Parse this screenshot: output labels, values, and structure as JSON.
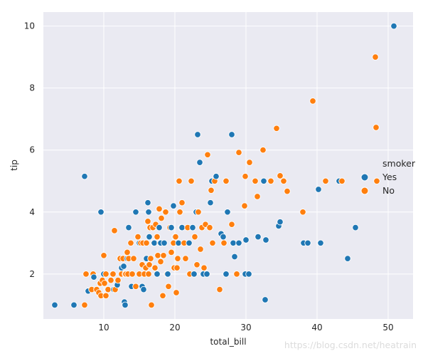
{
  "chart_data": {
    "type": "scatter",
    "title": "",
    "xlabel": "total_bill",
    "ylabel": "tip",
    "xlim": [
      1.5,
      53.5
    ],
    "ylim": [
      0.55,
      10.45
    ],
    "xticks": [
      10,
      20,
      30,
      40,
      50
    ],
    "yticks": [
      2,
      4,
      6,
      8,
      10
    ],
    "grid": true,
    "background": "#eaeaf2",
    "legend": {
      "title": "smoker",
      "placement": "right"
    },
    "series": [
      {
        "name": "Yes",
        "color": "#1f77b4",
        "points": [
          [
            3.1,
            1.0
          ],
          [
            5.8,
            1.0
          ],
          [
            7.3,
            5.15
          ],
          [
            7.8,
            1.45
          ],
          [
            8.6,
            1.9
          ],
          [
            9.6,
            4.0
          ],
          [
            10.0,
            2.0
          ],
          [
            10.3,
            2.0
          ],
          [
            11.2,
            2.0
          ],
          [
            11.4,
            1.5
          ],
          [
            11.9,
            1.65
          ],
          [
            12.5,
            2.2
          ],
          [
            12.8,
            2.25
          ],
          [
            12.9,
            1.1
          ],
          [
            13.0,
            1.0
          ],
          [
            13.3,
            2.5
          ],
          [
            13.5,
            3.5
          ],
          [
            13.9,
            1.6
          ],
          [
            14.5,
            4.0
          ],
          [
            15.0,
            3.0
          ],
          [
            15.4,
            1.6
          ],
          [
            15.6,
            1.5
          ],
          [
            16.0,
            2.5
          ],
          [
            16.2,
            4.3
          ],
          [
            16.3,
            4.0
          ],
          [
            16.4,
            3.2
          ],
          [
            17.1,
            3.0
          ],
          [
            17.5,
            2.0
          ],
          [
            17.8,
            3.5
          ],
          [
            18.0,
            3.0
          ],
          [
            18.5,
            3.0
          ],
          [
            19.0,
            2.0
          ],
          [
            19.5,
            3.5
          ],
          [
            19.8,
            4.2
          ],
          [
            20.0,
            3.2
          ],
          [
            20.5,
            3.0
          ],
          [
            21.0,
            3.5
          ],
          [
            22.0,
            3.0
          ],
          [
            22.5,
            3.5
          ],
          [
            22.7,
            2.0
          ],
          [
            23.0,
            4.0
          ],
          [
            23.2,
            6.5
          ],
          [
            23.5,
            5.6
          ],
          [
            24.0,
            2.0
          ],
          [
            24.5,
            2.0
          ],
          [
            25.0,
            4.3
          ],
          [
            25.2,
            5.0
          ],
          [
            25.8,
            5.15
          ],
          [
            26.5,
            3.3
          ],
          [
            26.8,
            3.2
          ],
          [
            27.2,
            2.0
          ],
          [
            27.4,
            4.0
          ],
          [
            28.0,
            6.5
          ],
          [
            28.2,
            3.0
          ],
          [
            28.4,
            2.56
          ],
          [
            29.0,
            3.0
          ],
          [
            29.9,
            2.0
          ],
          [
            30.0,
            3.1
          ],
          [
            30.4,
            2.0
          ],
          [
            31.7,
            3.2
          ],
          [
            32.5,
            5.0
          ],
          [
            32.7,
            1.17
          ],
          [
            32.8,
            3.1
          ],
          [
            34.6,
            3.55
          ],
          [
            34.8,
            3.68
          ],
          [
            38.1,
            3.0
          ],
          [
            38.7,
            3.0
          ],
          [
            40.2,
            4.73
          ],
          [
            40.5,
            3.0
          ],
          [
            43.1,
            5.0
          ],
          [
            44.3,
            2.5
          ],
          [
            45.4,
            3.5
          ],
          [
            50.8,
            10.0
          ]
        ]
      },
      {
        "name": "No",
        "color": "#ff7f0e",
        "points": [
          [
            7.3,
            1.0
          ],
          [
            7.5,
            2.0
          ],
          [
            8.3,
            1.5
          ],
          [
            8.5,
            2.0
          ],
          [
            9.0,
            1.5
          ],
          [
            9.3,
            1.4
          ],
          [
            9.5,
            1.7
          ],
          [
            9.6,
            1.3
          ],
          [
            9.8,
            1.8
          ],
          [
            10.0,
            2.6
          ],
          [
            10.1,
            1.7
          ],
          [
            10.3,
            1.3
          ],
          [
            10.3,
            2.0
          ],
          [
            10.6,
            1.5
          ],
          [
            11.0,
            1.8
          ],
          [
            11.3,
            2.0
          ],
          [
            11.5,
            3.4
          ],
          [
            11.6,
            1.5
          ],
          [
            12.0,
            1.8
          ],
          [
            12.3,
            2.5
          ],
          [
            12.5,
            2.0
          ],
          [
            12.7,
            2.5
          ],
          [
            13.0,
            2.0
          ],
          [
            13.1,
            2.0
          ],
          [
            13.3,
            2.7
          ],
          [
            13.4,
            2.0
          ],
          [
            13.5,
            2.5
          ],
          [
            13.8,
            3.0
          ],
          [
            14.0,
            2.0
          ],
          [
            14.2,
            2.5
          ],
          [
            14.5,
            1.6
          ],
          [
            14.8,
            3.2
          ],
          [
            15.0,
            2.0
          ],
          [
            15.2,
            3.0
          ],
          [
            15.4,
            2.3
          ],
          [
            15.5,
            3.0
          ],
          [
            15.7,
            2.0
          ],
          [
            15.9,
            2.2
          ],
          [
            16.0,
            3.0
          ],
          [
            16.2,
            3.7
          ],
          [
            16.3,
            2.0
          ],
          [
            16.4,
            2.3
          ],
          [
            16.5,
            3.5
          ],
          [
            16.6,
            2.5
          ],
          [
            16.7,
            1.0
          ],
          [
            16.9,
            3.5
          ],
          [
            17.0,
            3.0
          ],
          [
            17.2,
            2.2
          ],
          [
            17.3,
            3.6
          ],
          [
            17.5,
            3.2
          ],
          [
            17.6,
            2.6
          ],
          [
            17.8,
            4.1
          ],
          [
            17.9,
            3.0
          ],
          [
            18.0,
            2.4
          ],
          [
            18.1,
            3.8
          ],
          [
            18.3,
            1.3
          ],
          [
            18.4,
            2.6
          ],
          [
            18.7,
            4.0
          ],
          [
            18.9,
            2.0
          ],
          [
            19.1,
            1.6
          ],
          [
            19.3,
            3.5
          ],
          [
            19.5,
            2.7
          ],
          [
            19.8,
            3.0
          ],
          [
            19.9,
            2.2
          ],
          [
            20.1,
            3.2
          ],
          [
            20.2,
            1.4
          ],
          [
            20.3,
            2.2
          ],
          [
            20.4,
            2.5
          ],
          [
            20.6,
            5.0
          ],
          [
            20.7,
            4.0
          ],
          [
            20.9,
            3.5
          ],
          [
            21.0,
            4.3
          ],
          [
            21.3,
            3.0
          ],
          [
            21.5,
            2.5
          ],
          [
            21.8,
            3.5
          ],
          [
            22.1,
            2.0
          ],
          [
            22.3,
            5.0
          ],
          [
            22.8,
            3.2
          ],
          [
            23.1,
            2.3
          ],
          [
            23.3,
            4.0
          ],
          [
            23.6,
            2.8
          ],
          [
            23.8,
            3.5
          ],
          [
            24.1,
            2.2
          ],
          [
            24.3,
            3.6
          ],
          [
            24.6,
            5.85
          ],
          [
            24.9,
            3.5
          ],
          [
            25.1,
            4.7
          ],
          [
            25.3,
            3.0
          ],
          [
            25.6,
            5.0
          ],
          [
            26.3,
            1.5
          ],
          [
            26.9,
            3.0
          ],
          [
            27.2,
            5.0
          ],
          [
            28.0,
            3.6
          ],
          [
            28.7,
            2.0
          ],
          [
            29.0,
            5.92
          ],
          [
            29.8,
            4.2
          ],
          [
            29.9,
            5.15
          ],
          [
            30.5,
            5.6
          ],
          [
            31.3,
            5.0
          ],
          [
            31.6,
            4.5
          ],
          [
            32.4,
            6.0
          ],
          [
            33.5,
            5.0
          ],
          [
            34.3,
            6.7
          ],
          [
            34.8,
            5.17
          ],
          [
            35.3,
            5.0
          ],
          [
            35.8,
            4.67
          ],
          [
            38.0,
            4.0
          ],
          [
            39.4,
            7.58
          ],
          [
            41.2,
            5.0
          ],
          [
            43.5,
            5.0
          ],
          [
            48.2,
            9.0
          ],
          [
            48.3,
            6.73
          ],
          [
            48.4,
            5.0
          ]
        ]
      }
    ]
  },
  "watermark": "https://blog.csdn.net/heatrain"
}
